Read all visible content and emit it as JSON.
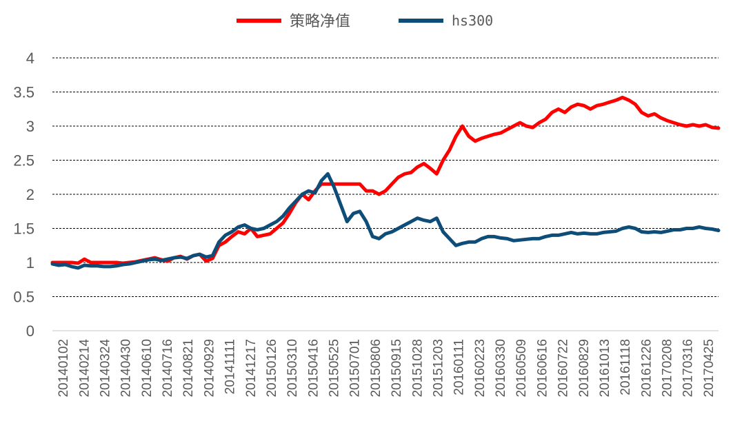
{
  "chart_data": {
    "type": "line",
    "title": "",
    "xlabel": "",
    "ylabel": "",
    "ylim": [
      0,
      4
    ],
    "yticks": [
      "0",
      "0.5",
      "1",
      "1.5",
      "2",
      "2.5",
      "3",
      "3.5",
      "4"
    ],
    "grid": "horizontal dashed",
    "legend_position": "top-center",
    "x_tick_labels": [
      "20140102",
      "20140214",
      "20140324",
      "20140430",
      "20140610",
      "20140716",
      "20140821",
      "20140929",
      "20141111",
      "20141217",
      "20150126",
      "20150310",
      "20150416",
      "20150525",
      "20150701",
      "20150806",
      "20150915",
      "20151028",
      "20151203",
      "20160111",
      "20160223",
      "20160330",
      "20160509",
      "20160616",
      "20160722",
      "20160829",
      "20161013",
      "20161118",
      "20161226",
      "20170208",
      "20170316",
      "20170425"
    ],
    "series": [
      {
        "name": "策略净值",
        "color": "#ff0000",
        "values": [
          1.0,
          1.0,
          1.0,
          1.0,
          0.99,
          1.05,
          1.0,
          1.0,
          1.0,
          1.0,
          1.0,
          0.99,
          1.0,
          1.01,
          1.03,
          1.05,
          1.07,
          1.04,
          1.02,
          1.07,
          1.09,
          1.05,
          1.1,
          1.12,
          1.02,
          1.06,
          1.25,
          1.3,
          1.38,
          1.45,
          1.42,
          1.5,
          1.38,
          1.4,
          1.42,
          1.5,
          1.58,
          1.72,
          1.88,
          2.0,
          1.92,
          2.05,
          2.15,
          2.15,
          2.15,
          2.15,
          2.15,
          2.15,
          2.15,
          2.05,
          2.05,
          2.0,
          2.05,
          2.15,
          2.25,
          2.3,
          2.32,
          2.4,
          2.45,
          2.38,
          2.3,
          2.5,
          2.65,
          2.85,
          3.0,
          2.85,
          2.78,
          2.82,
          2.85,
          2.88,
          2.9,
          2.95,
          3.0,
          3.05,
          3.0,
          2.98,
          3.05,
          3.1,
          3.2,
          3.25,
          3.2,
          3.28,
          3.32,
          3.3,
          3.25,
          3.3,
          3.32,
          3.35,
          3.38,
          3.42,
          3.38,
          3.32,
          3.2,
          3.15,
          3.18,
          3.12,
          3.08,
          3.05,
          3.02,
          3.0,
          3.02,
          3.0,
          3.02,
          2.98,
          2.97
        ]
      },
      {
        "name": "hs300",
        "color": "#0e4d78",
        "values": [
          0.98,
          0.96,
          0.97,
          0.94,
          0.92,
          0.96,
          0.95,
          0.95,
          0.94,
          0.94,
          0.95,
          0.97,
          0.98,
          1.0,
          1.02,
          1.04,
          1.05,
          1.03,
          1.05,
          1.07,
          1.08,
          1.06,
          1.1,
          1.12,
          1.08,
          1.1,
          1.3,
          1.4,
          1.45,
          1.52,
          1.55,
          1.5,
          1.48,
          1.5,
          1.55,
          1.6,
          1.68,
          1.8,
          1.9,
          2.0,
          2.05,
          2.02,
          2.2,
          2.3,
          2.1,
          1.85,
          1.6,
          1.72,
          1.75,
          1.6,
          1.38,
          1.35,
          1.42,
          1.45,
          1.5,
          1.55,
          1.6,
          1.65,
          1.62,
          1.6,
          1.65,
          1.45,
          1.35,
          1.25,
          1.28,
          1.3,
          1.3,
          1.35,
          1.38,
          1.38,
          1.36,
          1.35,
          1.32,
          1.33,
          1.34,
          1.35,
          1.35,
          1.38,
          1.4,
          1.4,
          1.42,
          1.44,
          1.42,
          1.43,
          1.42,
          1.42,
          1.44,
          1.45,
          1.46,
          1.5,
          1.52,
          1.5,
          1.45,
          1.44,
          1.45,
          1.44,
          1.46,
          1.48,
          1.48,
          1.5,
          1.5,
          1.52,
          1.5,
          1.49,
          1.47
        ]
      }
    ]
  }
}
